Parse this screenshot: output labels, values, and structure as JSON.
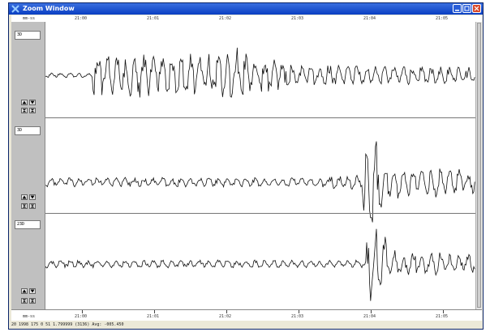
{
  "window": {
    "title": "Zoom Window"
  },
  "time_axis": {
    "left_label": "mm-ss",
    "ticks": [
      "21:00",
      "21:01",
      "21:02",
      "21:03",
      "21:04",
      "21:05"
    ]
  },
  "channels": [
    {
      "label": "3D"
    },
    {
      "label": "3D"
    },
    {
      "label": "23D"
    }
  ],
  "status": {
    "text": "20 1998 175 0 51 1.799999 (3136) Avg: -005.450"
  }
}
